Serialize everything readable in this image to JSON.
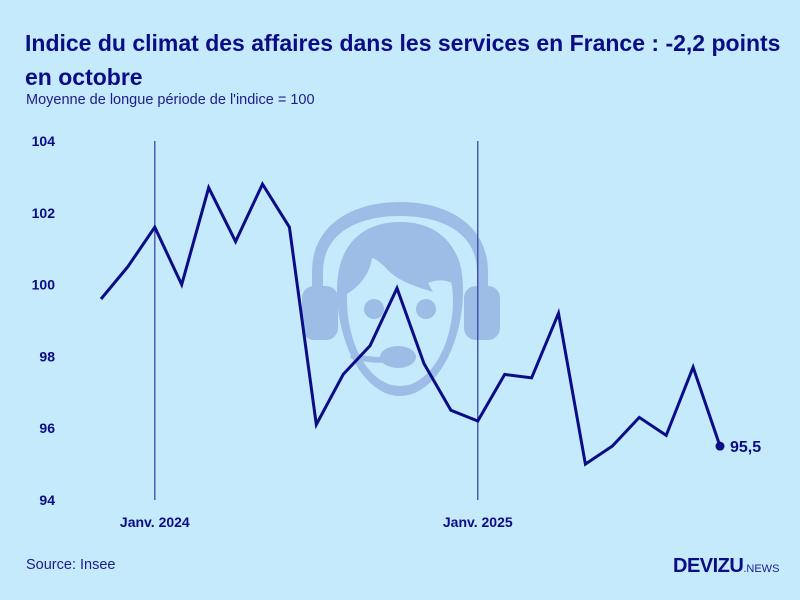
{
  "header": {
    "title": "Indice du climat des affaires dans les services en France : -2,2 points en octobre",
    "subtitle": "Moyenne de longue période de l'indice = 100"
  },
  "footer": {
    "source": "Source: Insee",
    "logo_main": "DEVIZU",
    "logo_sub": ".NEWS"
  },
  "colors": {
    "background": "#c4eafb",
    "line": "#0c0c86",
    "icon": "#9dbde6"
  },
  "decoration": {
    "icon": "call-center-agent-headset-icon"
  },
  "chart_data": {
    "type": "line",
    "title": "Indice du climat des affaires dans les services en France : -2,2 points en octobre",
    "subtitle": "Moyenne de longue période de l'indice = 100",
    "xlabel": "",
    "ylabel": "",
    "ylim": [
      94,
      104
    ],
    "yticks": [
      94,
      96,
      98,
      100,
      102,
      104
    ],
    "ytick_labels": [
      "94",
      "96",
      "98",
      "100",
      "102",
      "104"
    ],
    "x": [
      "2023-11",
      "2023-12",
      "2024-01",
      "2024-02",
      "2024-03",
      "2024-04",
      "2024-05",
      "2024-06",
      "2024-07",
      "2024-08",
      "2024-09",
      "2024-10",
      "2024-11",
      "2024-12",
      "2025-01",
      "2025-02",
      "2025-03",
      "2025-04",
      "2025-05",
      "2025-06",
      "2025-07",
      "2025-08",
      "2025-09",
      "2025-10"
    ],
    "series": [
      {
        "name": "Indice du climat des affaires - services",
        "values": [
          99.6,
          100.5,
          101.6,
          100.0,
          102.7,
          101.2,
          102.8,
          101.6,
          96.1,
          97.5,
          98.3,
          99.9,
          97.8,
          96.5,
          96.2,
          97.5,
          97.4,
          99.2,
          95.0,
          95.5,
          96.3,
          95.8,
          97.7,
          95.5
        ]
      }
    ],
    "xticks": [
      {
        "index": 2,
        "label": "Janv. 2024"
      },
      {
        "index": 14,
        "label": "Janv. 2025"
      }
    ],
    "annotations": [
      {
        "index": 23,
        "label": "95,5",
        "marker": "dot"
      }
    ],
    "grid": false,
    "legend": "none"
  }
}
